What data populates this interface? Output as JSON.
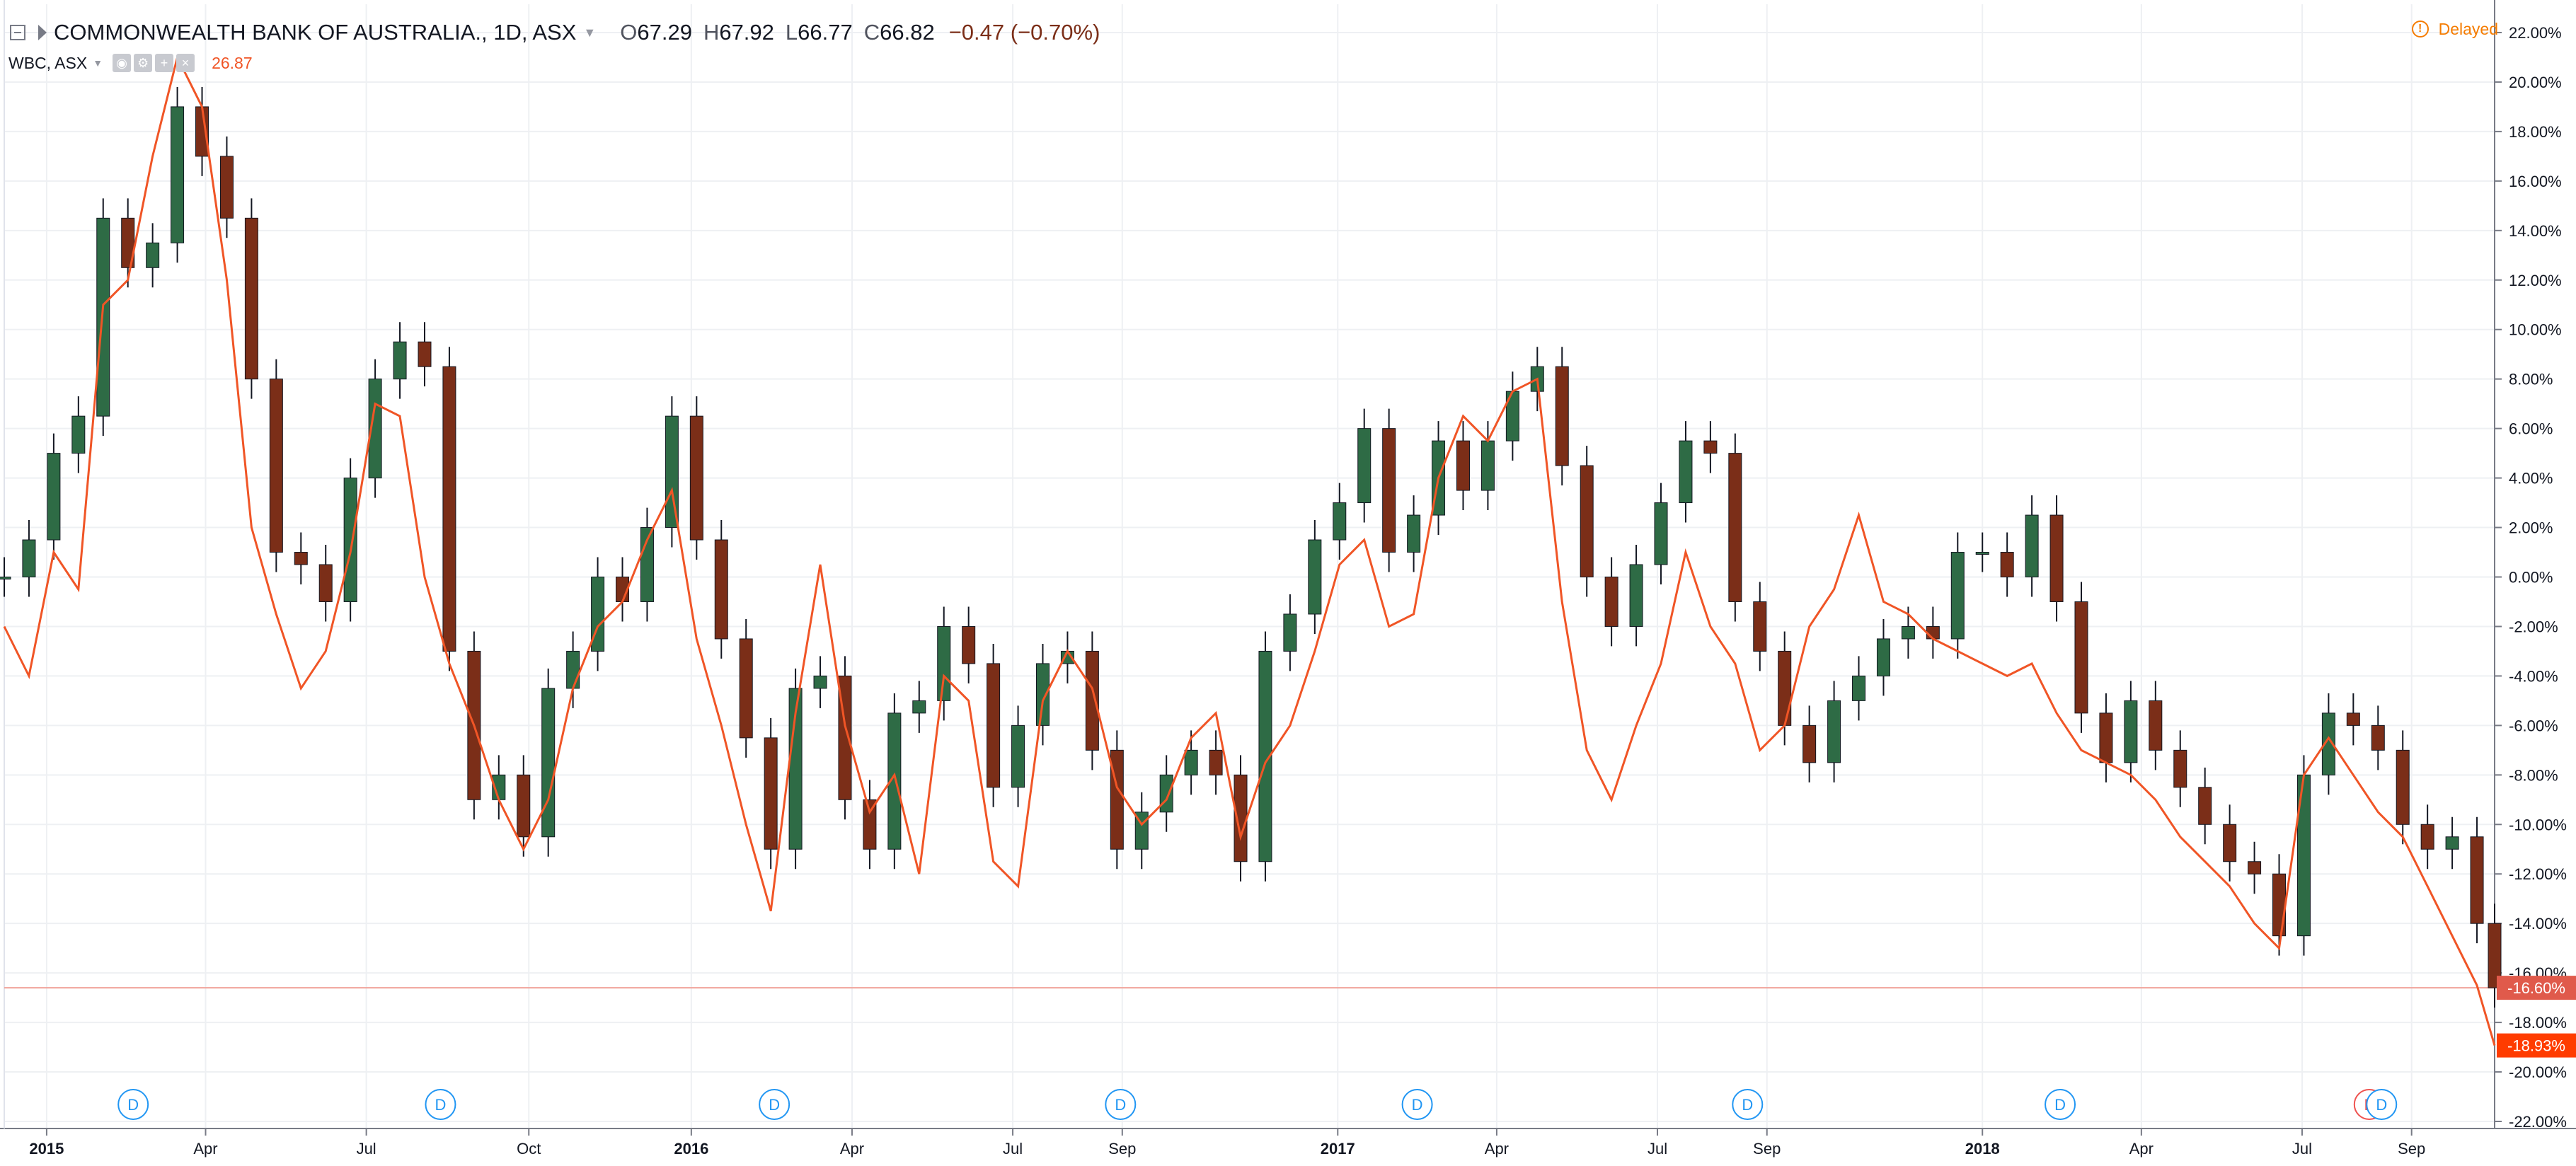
{
  "header": {
    "symbol": "COMMONWEALTH BANK OF AUSTRALIA., 1D, ASX",
    "open_label": "O",
    "open": "67.29",
    "high_label": "H",
    "high": "67.92",
    "low_label": "L",
    "low": "66.77",
    "close_label": "C",
    "close": "66.82",
    "change": "−0.47 (−0.70%)",
    "compare_symbol": "WBC, ASX",
    "compare_last": "26.87",
    "status": "Delayed"
  },
  "chart_data": {
    "type": "line",
    "y_unit": "percent change",
    "ylim": [
      -22.0,
      22.0
    ],
    "y_ticks": [
      "22.00%",
      "20.00%",
      "18.00%",
      "16.00%",
      "14.00%",
      "12.00%",
      "10.00%",
      "8.00%",
      "6.00%",
      "4.00%",
      "2.00%",
      "0.00%",
      "-2.00%",
      "-4.00%",
      "-6.00%",
      "-8.00%",
      "-10.00%",
      "-12.00%",
      "-14.00%",
      "-16.00%",
      "-18.00%",
      "-20.00%",
      "-22.00%"
    ],
    "x_ticks": [
      "2015",
      "Apr",
      "Jul",
      "Oct",
      "2016",
      "Apr",
      "Jul",
      "Sep",
      "2017",
      "Apr",
      "Jul",
      "Sep",
      "2018",
      "Apr",
      "Jul",
      "Sep"
    ],
    "x_tick_dates": [
      "2015-01-01",
      "2015-04-01",
      "2015-07-01",
      "2015-10-01",
      "2016-01-01",
      "2016-04-01",
      "2016-07-01",
      "2016-09-01",
      "2017-01-01",
      "2017-04-01",
      "2017-07-01",
      "2017-09-01",
      "2018-01-01",
      "2018-04-01",
      "2018-07-01",
      "2018-09-01"
    ],
    "x_range": [
      "2014-12-08",
      "2018-10-18"
    ],
    "series": [
      {
        "name": "COMMONWEALTH BANK OF AUSTRALIA.",
        "style": "candles",
        "up_color": "#2e6b45",
        "down_color": "#7b2e18",
        "x": [
          "2014-12-08",
          "2014-12-22",
          "2015-01-05",
          "2015-01-19",
          "2015-02-02",
          "2015-02-16",
          "2015-03-02",
          "2015-03-16",
          "2015-03-30",
          "2015-04-13",
          "2015-04-27",
          "2015-05-11",
          "2015-05-25",
          "2015-06-08",
          "2015-06-22",
          "2015-07-06",
          "2015-07-20",
          "2015-08-03",
          "2015-08-17",
          "2015-08-31",
          "2015-09-14",
          "2015-09-28",
          "2015-10-12",
          "2015-10-26",
          "2015-11-09",
          "2015-11-23",
          "2015-12-07",
          "2015-12-21",
          "2016-01-04",
          "2016-01-18",
          "2016-02-01",
          "2016-02-15",
          "2016-02-29",
          "2016-03-14",
          "2016-03-28",
          "2016-04-11",
          "2016-04-25",
          "2016-05-09",
          "2016-05-23",
          "2016-06-06",
          "2016-06-20",
          "2016-07-04",
          "2016-07-18",
          "2016-08-01",
          "2016-08-15",
          "2016-08-29",
          "2016-09-12",
          "2016-09-26",
          "2016-10-10",
          "2016-10-24",
          "2016-11-07",
          "2016-11-21",
          "2016-12-05",
          "2016-12-19",
          "2017-01-02",
          "2017-01-16",
          "2017-01-30",
          "2017-02-13",
          "2017-02-27",
          "2017-03-13",
          "2017-03-27",
          "2017-04-10",
          "2017-04-24",
          "2017-05-08",
          "2017-05-22",
          "2017-06-05",
          "2017-06-19",
          "2017-07-03",
          "2017-07-17",
          "2017-07-31",
          "2017-08-14",
          "2017-08-28",
          "2017-09-11",
          "2017-09-25",
          "2017-10-09",
          "2017-10-23",
          "2017-11-06",
          "2017-11-20",
          "2017-12-04",
          "2017-12-18",
          "2018-01-01",
          "2018-01-15",
          "2018-01-29",
          "2018-02-12",
          "2018-02-26",
          "2018-03-12",
          "2018-03-26",
          "2018-04-09",
          "2018-04-23",
          "2018-05-07",
          "2018-05-21",
          "2018-06-04",
          "2018-06-18",
          "2018-07-02",
          "2018-07-16",
          "2018-07-30",
          "2018-08-13",
          "2018-08-27",
          "2018-09-10",
          "2018-09-24",
          "2018-10-08",
          "2018-10-18"
        ],
        "values": [
          0.0,
          1.5,
          5.0,
          6.5,
          14.5,
          12.5,
          13.5,
          19.0,
          17.0,
          14.5,
          8.0,
          1.0,
          0.5,
          -1.0,
          4.0,
          8.0,
          9.5,
          8.5,
          -3.0,
          -9.0,
          -8.0,
          -10.5,
          -4.5,
          -3.0,
          0.0,
          -1.0,
          2.0,
          6.5,
          1.5,
          -2.5,
          -6.5,
          -11.0,
          -4.5,
          -4.0,
          -9.0,
          -11.0,
          -5.5,
          -5.0,
          -2.0,
          -3.5,
          -8.5,
          -6.0,
          -3.5,
          -3.0,
          -7.0,
          -11.0,
          -9.5,
          -8.0,
          -7.0,
          -8.0,
          -11.5,
          -3.0,
          -1.5,
          1.5,
          3.0,
          6.0,
          1.0,
          2.5,
          5.5,
          3.5,
          5.5,
          7.5,
          8.5,
          4.5,
          0.0,
          -2.0,
          0.5,
          3.0,
          5.5,
          5.0,
          -1.0,
          -3.0,
          -6.0,
          -7.5,
          -5.0,
          -4.0,
          -2.5,
          -2.0,
          -2.5,
          1.0,
          1.0,
          0.0,
          2.5,
          -1.0,
          -5.5,
          -7.5,
          -5.0,
          -7.0,
          -8.5,
          -10.0,
          -11.5,
          -12.0,
          -14.5,
          -8.0,
          -5.5,
          -6.0,
          -7.0,
          -10.0,
          -11.0,
          -10.5,
          -14.0,
          -16.6
        ]
      },
      {
        "name": "WBC, ASX",
        "style": "line",
        "color": "#f05526",
        "x": [
          "2014-12-08",
          "2014-12-22",
          "2015-01-05",
          "2015-01-19",
          "2015-02-02",
          "2015-02-16",
          "2015-03-02",
          "2015-03-16",
          "2015-03-30",
          "2015-04-13",
          "2015-04-27",
          "2015-05-11",
          "2015-05-25",
          "2015-06-08",
          "2015-06-22",
          "2015-07-06",
          "2015-07-20",
          "2015-08-03",
          "2015-08-17",
          "2015-08-31",
          "2015-09-14",
          "2015-09-28",
          "2015-10-12",
          "2015-10-26",
          "2015-11-09",
          "2015-11-23",
          "2015-12-07",
          "2015-12-21",
          "2016-01-04",
          "2016-01-18",
          "2016-02-01",
          "2016-02-15",
          "2016-02-29",
          "2016-03-14",
          "2016-03-28",
          "2016-04-11",
          "2016-04-25",
          "2016-05-09",
          "2016-05-23",
          "2016-06-06",
          "2016-06-20",
          "2016-07-04",
          "2016-07-18",
          "2016-08-01",
          "2016-08-15",
          "2016-08-29",
          "2016-09-12",
          "2016-09-26",
          "2016-10-10",
          "2016-10-24",
          "2016-11-07",
          "2016-11-21",
          "2016-12-05",
          "2016-12-19",
          "2017-01-02",
          "2017-01-16",
          "2017-01-30",
          "2017-02-13",
          "2017-02-27",
          "2017-03-13",
          "2017-03-27",
          "2017-04-10",
          "2017-04-24",
          "2017-05-08",
          "2017-05-22",
          "2017-06-05",
          "2017-06-19",
          "2017-07-03",
          "2017-07-17",
          "2017-07-31",
          "2017-08-14",
          "2017-08-28",
          "2017-09-11",
          "2017-09-25",
          "2017-10-09",
          "2017-10-23",
          "2017-11-06",
          "2017-11-20",
          "2017-12-04",
          "2017-12-18",
          "2018-01-01",
          "2018-01-15",
          "2018-01-29",
          "2018-02-12",
          "2018-02-26",
          "2018-03-12",
          "2018-03-26",
          "2018-04-09",
          "2018-04-23",
          "2018-05-07",
          "2018-05-21",
          "2018-06-04",
          "2018-06-18",
          "2018-07-02",
          "2018-07-16",
          "2018-07-30",
          "2018-08-13",
          "2018-08-27",
          "2018-09-10",
          "2018-09-24",
          "2018-10-08",
          "2018-10-18"
        ],
        "values": [
          -2.0,
          -4.0,
          1.0,
          -0.5,
          11.0,
          12.0,
          17.0,
          21.0,
          19.0,
          12.0,
          2.0,
          -1.5,
          -4.5,
          -3.0,
          1.0,
          7.0,
          6.5,
          0.0,
          -3.5,
          -6.0,
          -9.0,
          -11.0,
          -9.0,
          -4.5,
          -2.0,
          -1.0,
          1.5,
          3.5,
          -2.5,
          -6.0,
          -10.0,
          -13.5,
          -5.5,
          0.5,
          -6.0,
          -9.5,
          -8.0,
          -12.0,
          -4.0,
          -5.0,
          -11.5,
          -12.5,
          -5.0,
          -3.0,
          -4.5,
          -8.5,
          -10.0,
          -9.0,
          -6.5,
          -5.5,
          -10.5,
          -7.5,
          -6.0,
          -3.0,
          0.5,
          1.5,
          -2.0,
          -1.5,
          4.0,
          6.5,
          5.5,
          7.5,
          8.0,
          -1.0,
          -7.0,
          -9.0,
          -6.0,
          -3.5,
          1.0,
          -2.0,
          -3.5,
          -7.0,
          -6.0,
          -2.0,
          -0.5,
          2.5,
          -1.0,
          -1.5,
          -2.5,
          -3.0,
          -3.5,
          -4.0,
          -3.5,
          -5.5,
          -7.0,
          -7.5,
          -8.0,
          -9.0,
          -10.5,
          -11.5,
          -12.5,
          -14.0,
          -15.0,
          -8.0,
          -6.5,
          -8.0,
          -9.5,
          -10.5,
          -12.5,
          -14.5,
          -16.5,
          -18.93
        ]
      }
    ],
    "last_value_labels": [
      "-16.60%",
      "-18.93%"
    ],
    "event_markers": [
      {
        "date": "2015-02-19",
        "label": "D"
      },
      {
        "date": "2015-08-12",
        "label": "D"
      },
      {
        "date": "2016-02-17",
        "label": "D"
      },
      {
        "date": "2016-08-31",
        "label": "D"
      },
      {
        "date": "2017-02-15",
        "label": "D"
      },
      {
        "date": "2017-08-21",
        "label": "D"
      },
      {
        "date": "2018-02-14",
        "label": "D"
      },
      {
        "date": "2018-08-08",
        "label": "E"
      },
      {
        "date": "2018-08-15",
        "label": "D"
      }
    ],
    "grid": true,
    "legend": "top-left",
    "colors": {
      "axis_text": "#131722",
      "grid": "#eef0f3",
      "marker_blue": "#2196f3",
      "marker_red": "#ef5350",
      "last_label_1": "#e05a4b",
      "last_label_2": "#ff3c00"
    }
  }
}
